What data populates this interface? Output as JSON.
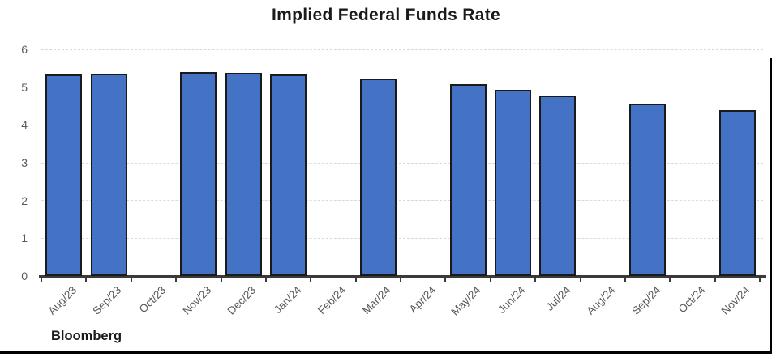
{
  "chart_data": {
    "type": "bar",
    "title": "Implied Federal Funds Rate",
    "source": "Bloomberg",
    "categories": [
      "Aug/23",
      "Sep/23",
      "Oct/23",
      "Nov/23",
      "Dec/23",
      "Jan/24",
      "Feb/24",
      "Mar/24",
      "Apr/24",
      "May/24",
      "Jun/24",
      "Jul/24",
      "Aug/24",
      "Sep/24",
      "Oct/24",
      "Nov/24"
    ],
    "values": [
      5.33,
      5.35,
      null,
      5.4,
      5.38,
      5.33,
      null,
      5.22,
      null,
      5.07,
      4.92,
      4.77,
      null,
      4.56,
      null,
      4.4
    ],
    "xlabel": "",
    "ylabel": "",
    "ylim": [
      0,
      6
    ],
    "yticks": [
      0,
      1,
      2,
      3,
      4,
      5,
      6
    ],
    "grid": "horizontal-dashed",
    "legend": "none",
    "colors": {
      "bar_fill": "#4472C4",
      "bar_border": "#1a1a1a",
      "gridline": "#d9d9d9",
      "axis_line": "#3a3a3a",
      "tick_label": "#595959",
      "title": "#1a1a1a",
      "frame_border": "#000000"
    }
  }
}
